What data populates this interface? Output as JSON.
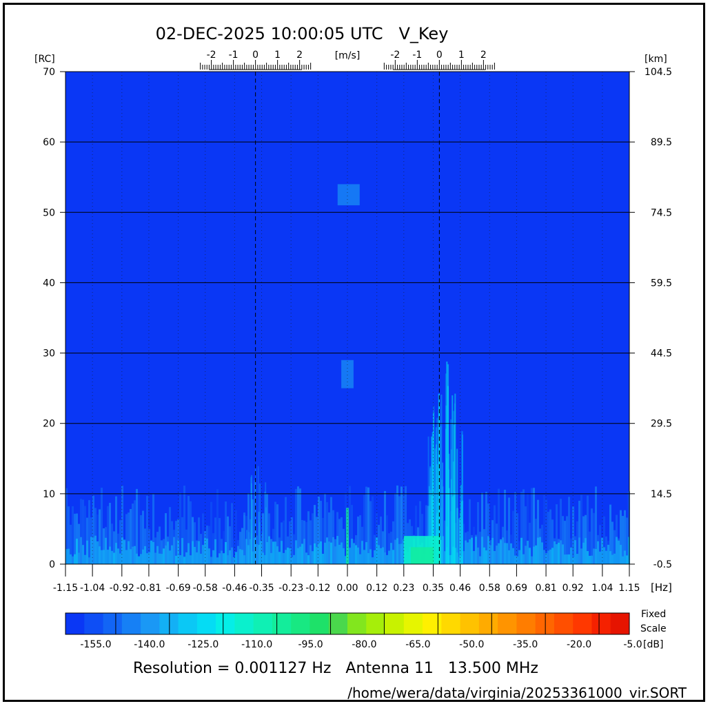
{
  "header": {
    "title": "02-DEC-2025 10:00:05 UTC   V_Key"
  },
  "axes": {
    "left_unit": "[RC]",
    "right_unit": "[km]",
    "bottom_unit": "[Hz]",
    "velocity_unit": "[m/s]"
  },
  "colorbar": {
    "label_line1": "Fixed",
    "label_line2": "Scale",
    "unit": "[dB]",
    "tick_labels": [
      "-155.0",
      "-140.0",
      "-125.0",
      "-110.0",
      "-95.0",
      "-80.0",
      "-65.0",
      "-50.0",
      "-35.0",
      "-20.0",
      "-5.0"
    ],
    "colors": [
      "#0a37f5",
      "#0e4ef5",
      "#1265f5",
      "#1680f5",
      "#1a98f5",
      "#13b0f5",
      "#0bc8f5",
      "#05dcf4",
      "#05eee7",
      "#0af0cd",
      "#0ff0b4",
      "#13ed9b",
      "#18e882",
      "#1ee169",
      "#4ad84c",
      "#82e61e",
      "#a6ee0a",
      "#c8f200",
      "#e6f500",
      "#fff000",
      "#ffd900",
      "#ffc200",
      "#ffab00",
      "#ff9400",
      "#ff7d00",
      "#ff6600",
      "#ff4f00",
      "#ff3800",
      "#f52100",
      "#e61400"
    ]
  },
  "footer": {
    "resolution": "Resolution = 0.001127 Hz   Antenna 11   13.500 MHz",
    "path": "/home/wera/data/virginia/20253361000_vir.SORT"
  },
  "chart_data": {
    "type": "heatmap",
    "title": "02-DEC-2025 10:00:05 UTC   V_Key",
    "xlabel": "[Hz]",
    "ylabel": "[RC]",
    "y2label": "[km]",
    "xlim": [
      -1.15,
      1.15
    ],
    "ylim": [
      0,
      70
    ],
    "x_ticks": [
      -1.15,
      -1.04,
      -0.92,
      -0.81,
      -0.69,
      -0.58,
      -0.46,
      -0.35,
      -0.23,
      -0.12,
      0.0,
      0.12,
      0.23,
      0.35,
      0.46,
      0.58,
      0.69,
      0.81,
      0.92,
      1.04,
      1.15
    ],
    "x_tick_labels": [
      "-1.15",
      "-1.04",
      "-0.92",
      "-0.81",
      "-0.69",
      "-0.58",
      "-0.46",
      "-0.35",
      "-0.23",
      "-0.12",
      "0.00",
      "0.12",
      "0.23",
      "0.35",
      "0.46",
      "0.58",
      "0.69",
      "0.81",
      "0.92",
      "1.04",
      "1.15"
    ],
    "y_ticks": [
      0,
      10,
      20,
      30,
      40,
      50,
      60,
      70
    ],
    "y2_ticks": [
      0,
      10,
      20,
      30,
      40,
      50,
      60,
      70
    ],
    "y2_tick_labels": [
      "-0.5",
      "14.5",
      "29.5",
      "44.5",
      "59.5",
      "74.5",
      "89.5",
      "104.5"
    ],
    "velocity_scales": [
      {
        "center_hz": -0.375,
        "hz_per_mps": 0.09,
        "labels": [
          "-2",
          "-1",
          "0",
          "1",
          "2"
        ],
        "values": [
          -2,
          -1,
          0,
          1,
          2
        ]
      },
      {
        "center_hz": 0.375,
        "hz_per_mps": 0.09,
        "labels": [
          "-2",
          "-1",
          "0",
          "1",
          "2"
        ],
        "values": [
          -2,
          -1,
          0,
          1,
          2
        ]
      }
    ],
    "bragg_lines_hz": [
      -0.375,
      0.375
    ],
    "colorscale_db": [
      -160,
      -1
    ],
    "background_db": -157,
    "features": [
      {
        "name": "noise-floor",
        "x_range": [
          -1.15,
          1.15
        ],
        "y_range": [
          0,
          9
        ],
        "db": -145
      },
      {
        "name": "positive-bragg-peak",
        "x_center": 0.4,
        "y_range": [
          0,
          31
        ],
        "db": -125
      },
      {
        "name": "positive-bragg-core",
        "x_range": [
          0.23,
          0.38
        ],
        "y_range": [
          0,
          4
        ],
        "db": -108
      },
      {
        "name": "zero-doppler-line",
        "x_center": 0.0,
        "y_range": [
          0,
          8
        ],
        "db": -100
      },
      {
        "name": "interference-52",
        "x_range": [
          -0.04,
          0.05
        ],
        "y_range": [
          51,
          54
        ],
        "db": -140
      },
      {
        "name": "interference-26",
        "x_range": [
          -0.025,
          0.025
        ],
        "y_range": [
          25,
          29
        ],
        "db": -140
      }
    ]
  }
}
